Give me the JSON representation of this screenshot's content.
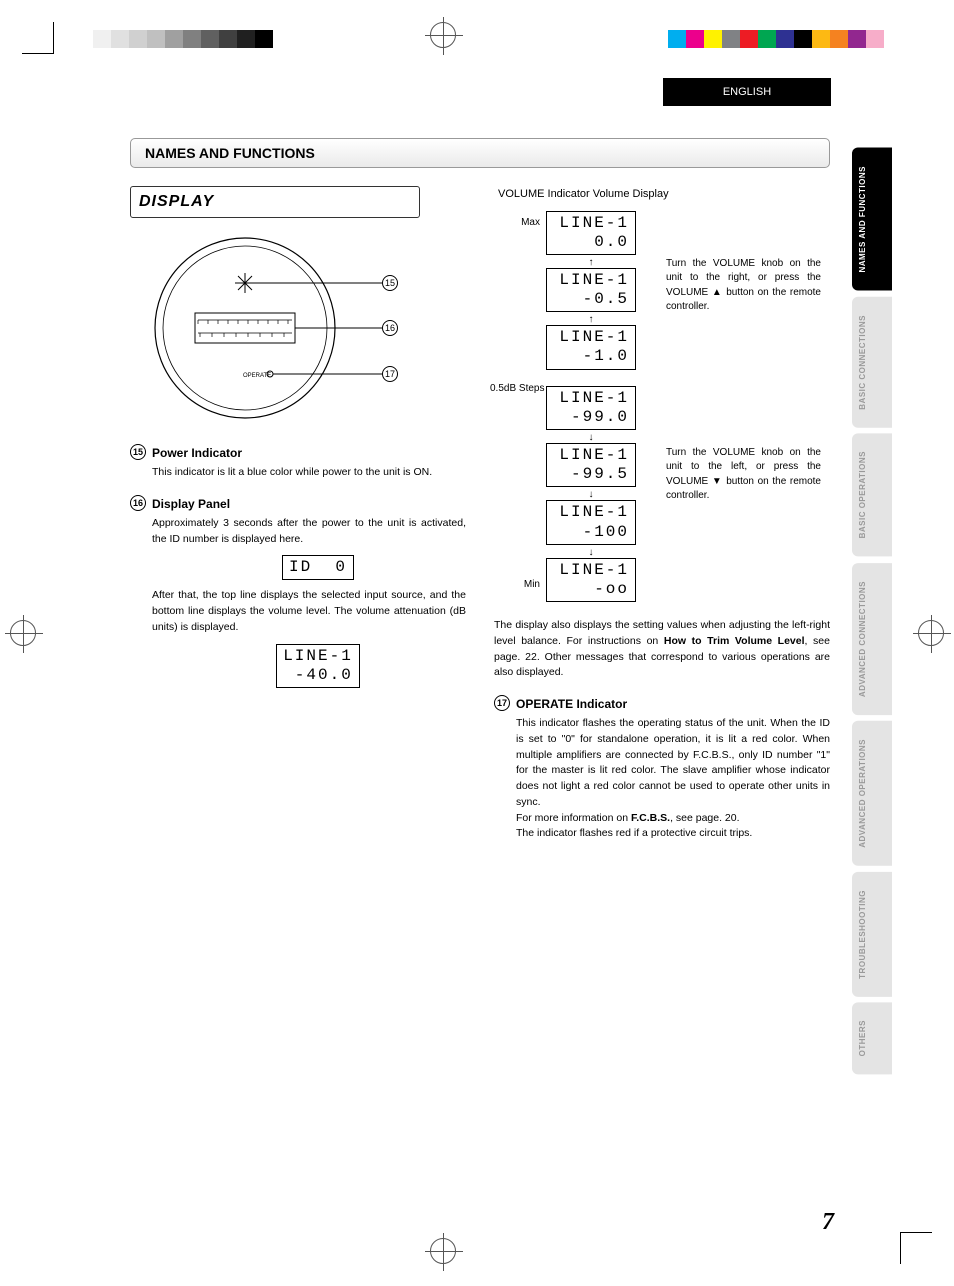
{
  "page_number": "7",
  "english_label": "ENGLISH",
  "section_title": "NAMES AND FUNCTIONS",
  "display_title": "DISPLAY",
  "colorbar_left": [
    "#ffffff",
    "#f0f0f0",
    "#e0e0e0",
    "#d0d0d0",
    "#c0c0c0",
    "#a0a0a0",
    "#808080",
    "#606060",
    "#404040",
    "#202020",
    "#000000"
  ],
  "colorbar_right": [
    "#00aeef",
    "#ec008c",
    "#fff200",
    "#808285",
    "#ed1c24",
    "#00a651",
    "#2e3192",
    "#000000",
    "#fdb913",
    "#f58220",
    "#92278f",
    "#f7adc9"
  ],
  "side_tabs": [
    {
      "label": "NAMES AND FUNCTIONS",
      "active": true
    },
    {
      "label": "BASIC CONNECTIONS",
      "active": false
    },
    {
      "label": "BASIC OPERATIONS",
      "active": false
    },
    {
      "label": "ADVANCED CONNECTIONS",
      "active": false
    },
    {
      "label": "ADVANCED OPERATIONS",
      "active": false
    },
    {
      "label": "TROUBLESHOOTING",
      "active": false
    },
    {
      "label": "OTHERS",
      "active": false
    }
  ],
  "diagram": {
    "operate_label": "OPERATE",
    "callouts": [
      "15",
      "16",
      "17"
    ]
  },
  "items": {
    "i15": {
      "num": "15",
      "title": "Power Indicator",
      "body": "This indicator is lit a blue color while power to the unit is ON."
    },
    "i16": {
      "num": "16",
      "title": "Display Panel",
      "body1": "Approximately 3 seconds after the power to the unit is activated, the ID number is displayed here.",
      "lcd1": "ID  0",
      "body2": "After that, the top line displays the selected input source, and the bottom line displays the volume level. The volume attenuation (dB units) is displayed.",
      "lcd2_l1": "LINE-1",
      "lcd2_l2": " -40.0"
    },
    "i17": {
      "num": "17",
      "title": "OPERATE Indicator",
      "body": "This indicator flashes the operating status of the unit. When the ID is set to \"0\" for standalone operation, it is lit a red color. When multiple amplifiers are connected by F.C.B.S., only ID number \"1\" for the master is lit red color. The slave amplifier whose indicator does not light a red color cannot be used to operate other units in sync.",
      "body2_pre": "For more information on ",
      "body2_bold": "F.C.B.S.",
      "body2_post": ", see page. 20.",
      "body3": "The indicator flashes red if a protective circuit trips."
    }
  },
  "volume": {
    "header": "VOLUME Indicator Volume Display",
    "max_label": "Max",
    "min_label": "Min",
    "steps_label": "0.5dB Steps",
    "up_note_1": "Turn the VOLUME knob on the unit to the right, or press the VOLUME ▲ button on the remote controller.",
    "down_note_1": "Turn the VOLUME knob on the unit to the left, or press the VOLUME ▼ button on the remote controller.",
    "rows_top": [
      {
        "l1": "LINE-1",
        "l2": "   0.0"
      },
      {
        "l1": "LINE-1",
        "l2": "  -0.5"
      },
      {
        "l1": "LINE-1",
        "l2": "  -1.0"
      }
    ],
    "rows_bot": [
      {
        "l1": "LINE-1",
        "l2": " -99.0"
      },
      {
        "l1": "LINE-1",
        "l2": " -99.5"
      },
      {
        "l1": "LINE-1",
        "l2": "  -100"
      },
      {
        "l1": "LINE-1",
        "l2": "   -oo"
      }
    ],
    "footer_pre": "The display also displays the setting values when adjusting the left-right level balance. For instructions on ",
    "footer_bold": "How to Trim Volume Level",
    "footer_post": ", see page. 22. Other messages that correspond to various operations are also displayed."
  }
}
